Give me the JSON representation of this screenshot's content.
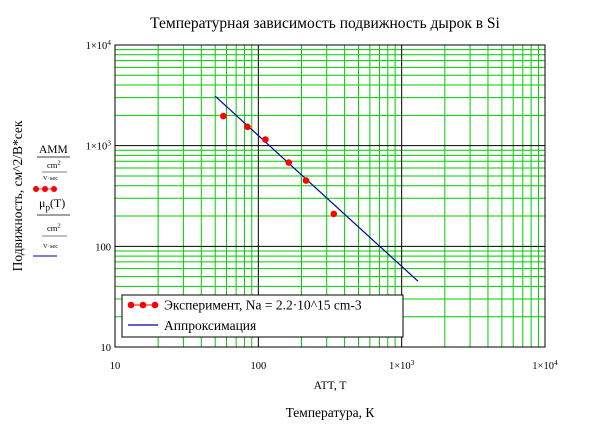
{
  "chart_data": {
    "type": "scatter",
    "title": "Температурная зависимость подвижность дырок в Si",
    "xlabel_inner": "ATT, T",
    "xlabel": "Температура, К",
    "ylabel": "Подвижность, см^2/B*сек",
    "x_scale": "log",
    "y_scale": "log",
    "xlim": [
      10,
      10000
    ],
    "ylim": [
      10,
      10000
    ],
    "grid": true,
    "grid_color": "#00cc00",
    "major_grid_color": "#000000",
    "x_ticks": [
      {
        "value": 10,
        "mant": "10",
        "exp": ""
      },
      {
        "value": 100,
        "mant": "100",
        "exp": ""
      },
      {
        "value": 1000,
        "mant": "1×10",
        "exp": "3"
      },
      {
        "value": 10000,
        "mant": "1×10",
        "exp": "4"
      }
    ],
    "y_ticks": [
      {
        "value": 10,
        "mant": "10",
        "exp": ""
      },
      {
        "value": 100,
        "mant": "100",
        "exp": ""
      },
      {
        "value": 1000,
        "mant": "1×10",
        "exp": "3"
      },
      {
        "value": 10000,
        "mant": "1×10",
        "exp": "4"
      }
    ],
    "series": [
      {
        "name": "Эксперимент, Na = 2.2·10^15 cm-3",
        "kind": "scatter",
        "color": "#ff0000",
        "x": [
          57,
          84,
          112,
          163,
          215,
          336
        ],
        "y": [
          1970,
          1540,
          1150,
          680,
          450,
          210
        ]
      },
      {
        "name": "Аппроксимация",
        "kind": "line",
        "color": "#0000a0",
        "x": [
          50,
          1300
        ],
        "y": [
          3100,
          45
        ]
      }
    ],
    "legend_position": "bottom-center"
  },
  "left_legend": {
    "s1_numerator": "AMM",
    "s1_denominator": "cm",
    "s1_den_exp": "2",
    "s1_den_sub": "V·sec",
    "s2_symbol": "μ",
    "s2_sub": "p",
    "s2_arg": "(T)",
    "s2_denominator": "cm",
    "s2_den_exp": "2",
    "s2_den_sub": "V·sec"
  }
}
